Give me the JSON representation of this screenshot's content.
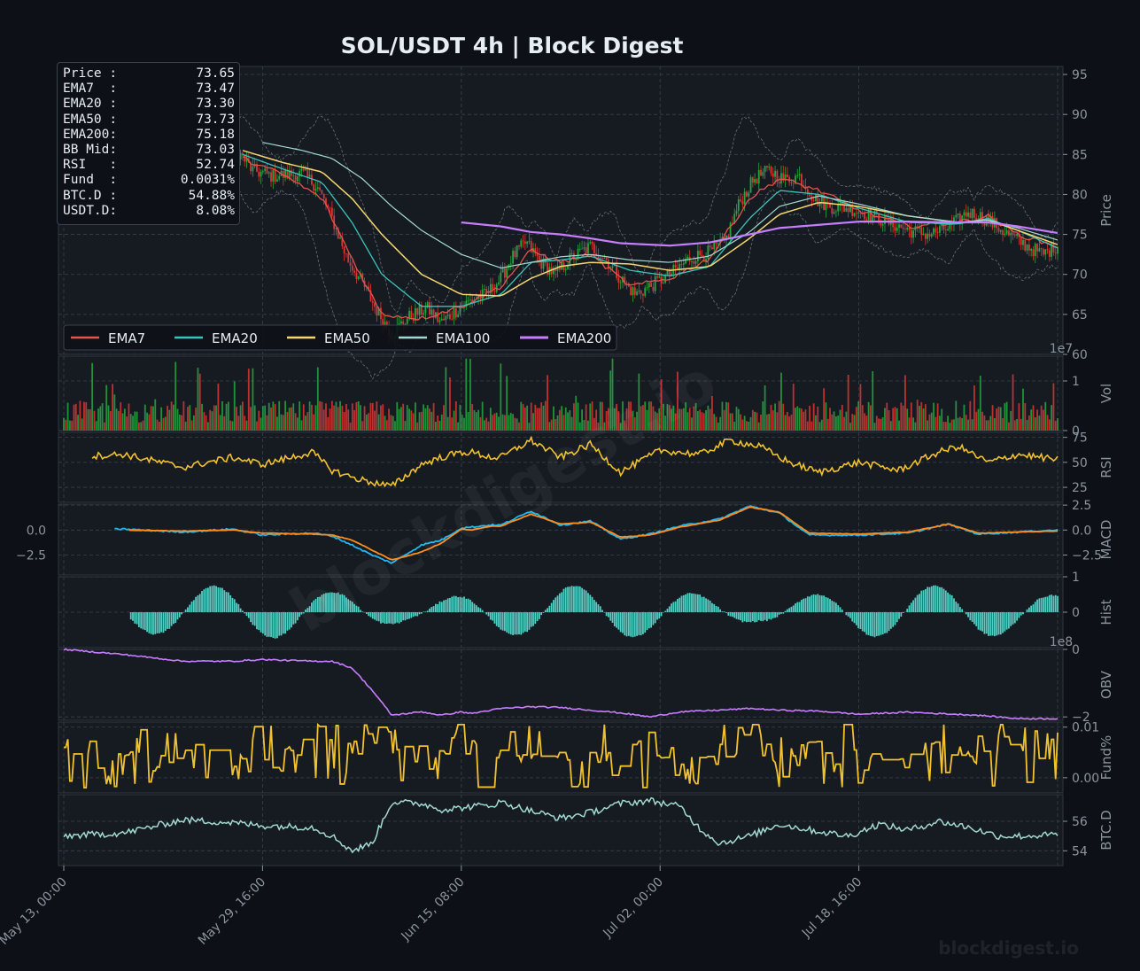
{
  "title": "SOL/USDT  4h  |  Block Digest",
  "watermark_center": "blockdigest.io",
  "watermark_corner": "blockdigest.io",
  "colors": {
    "background": "#0d1117",
    "panel": "#161b22",
    "grid": "#30363d",
    "axis_text": "#8b949e",
    "up": "#26a641",
    "down": "#da3633",
    "ema7": "#e5534b",
    "ema20": "#39c5bb",
    "ema50": "#f5d76e",
    "ema100": "#a3d9d3",
    "ema200": "#c77dff",
    "rsi": "#f2c12e",
    "macd": "#1fb8f0",
    "signal": "#ff8c1a",
    "hist": "#4fd1c5",
    "obv": "#c77dff",
    "funding": "#f2c12e",
    "btcd": "#a3d9d3"
  },
  "info_box": [
    {
      "label": "Price :",
      "value": "73.65"
    },
    {
      "label": "EMA7  :",
      "value": "73.47"
    },
    {
      "label": "EMA20 :",
      "value": "73.30"
    },
    {
      "label": "EMA50 :",
      "value": "73.73"
    },
    {
      "label": "EMA200:",
      "value": "75.18"
    },
    {
      "label": "BB Mid:",
      "value": "73.03"
    },
    {
      "label": "RSI   :",
      "value": "52.74"
    },
    {
      "label": "Fund  :",
      "value": "0.0031%"
    },
    {
      "label": "BTC.D :",
      "value": "54.88%"
    },
    {
      "label": "USDT.D:",
      "value": "8.08%"
    }
  ],
  "chart_data": {
    "type": "candlestick",
    "title": "SOL/USDT  4h  |  Block Digest",
    "x_ticks": [
      "May 13, 00:00",
      "May 29, 16:00",
      "Jun 15, 08:00",
      "Jul 02, 00:00",
      "Jul 18, 16:00"
    ],
    "x_anchor_points": [
      {
        "t": 0,
        "price": 86.5,
        "ema7": 86.0,
        "ema20": 86.5,
        "ema50": 86.0,
        "ema100": 86.5,
        "rsi": 55,
        "macd": 0.0,
        "signal": 0.0,
        "obv": 0.0,
        "funding": 0.005,
        "btcd": 55.0
      },
      {
        "t": 0.06,
        "price": 87.0,
        "ema7": 87.2,
        "ema20": 86.8,
        "ema50": 86.3,
        "ema100": 86.6,
        "rsi": 58,
        "macd": 0.1,
        "signal": 0.0,
        "obv": -0.15,
        "funding": 0.004,
        "btcd": 55.2
      },
      {
        "t": 0.12,
        "price": 87.5,
        "ema7": 87.3,
        "ema20": 87.0,
        "ema50": 86.6,
        "ema100": 86.7,
        "rsi": 45,
        "macd": -0.2,
        "signal": -0.1,
        "obv": -0.35,
        "funding": 0.006,
        "btcd": 56.1
      },
      {
        "t": 0.17,
        "price": 86.0,
        "ema7": 86.5,
        "ema20": 86.8,
        "ema50": 86.5,
        "ema100": 86.6,
        "rsi": 55,
        "macd": 0.1,
        "signal": 0.0,
        "obv": -0.35,
        "funding": 0.004,
        "btcd": 55.9
      },
      {
        "t": 0.2,
        "price": 82.0,
        "ema7": 83.5,
        "ema20": 84.5,
        "ema50": 85.0,
        "ema100": 86.0,
        "rsi": 48,
        "macd": -0.5,
        "signal": -0.3,
        "obv": -0.3,
        "funding": 0.007,
        "btcd": 55.7
      },
      {
        "t": 0.25,
        "price": 82.0,
        "ema7": 82.5,
        "ema20": 83.0,
        "ema50": 84.0,
        "ema100": 85.5,
        "rsi": 60,
        "macd": -0.3,
        "signal": -0.4,
        "obv": -0.35,
        "funding": 0.006,
        "btcd": 55.6
      },
      {
        "t": 0.27,
        "price": 78.0,
        "ema7": 79.0,
        "ema20": 80.5,
        "ema50": 82.5,
        "ema100": 84.5,
        "rsi": 42,
        "macd": -0.6,
        "signal": -0.5,
        "obv": -0.35,
        "funding": 0.008,
        "btcd": 55.0
      },
      {
        "t": 0.29,
        "price": 70.0,
        "ema7": 72.5,
        "ema20": 76.0,
        "ema50": 80.0,
        "ema100": 83.0,
        "rsi": 35,
        "macd": -1.5,
        "signal": -1.0,
        "obv": -0.55,
        "funding": 0.004,
        "btcd": 54.0
      },
      {
        "t": 0.31,
        "price": 65.0,
        "ema7": 66.5,
        "ema20": 70.5,
        "ema50": 76.5,
        "ema100": 80.5,
        "rsi": 30,
        "macd": -2.5,
        "signal": -2.0,
        "obv": -1.2,
        "funding": 0.002,
        "btcd": 54.5
      },
      {
        "t": 0.33,
        "price": 61.5,
        "ema7": 63.0,
        "ema20": 66.5,
        "ema50": 73.0,
        "ema100": 78.0,
        "rsi": 26,
        "macd": -3.3,
        "signal": -3.0,
        "obv": -1.95,
        "funding": 0.0,
        "btcd": 57.3
      },
      {
        "t": 0.36,
        "price": 65.0,
        "ema7": 64.5,
        "ema20": 65.0,
        "ema50": 69.5,
        "ema100": 75.5,
        "rsi": 48,
        "macd": -1.5,
        "signal": -2.2,
        "obv": -1.85,
        "funding": 0.002,
        "btcd": 57.2
      },
      {
        "t": 0.38,
        "price": 64.0,
        "ema7": 64.5,
        "ema20": 64.8,
        "ema50": 68.0,
        "ema100": 74.0,
        "rsi": 55,
        "macd": -1.0,
        "signal": -1.3,
        "obv": -1.95,
        "funding": 0.003,
        "btcd": 56.8
      },
      {
        "t": 0.41,
        "price": 66.5,
        "ema7": 66.0,
        "ema20": 65.5,
        "ema50": 67.3,
        "ema100": 72.0,
        "rsi": 60,
        "macd": 0.3,
        "signal": 0.0,
        "obv": -1.9,
        "funding": 0.004,
        "btcd": 57.0
      },
      {
        "t": 0.43,
        "price": 68.0,
        "ema7": 67.5,
        "ema20": 67.0,
        "ema50": 67.5,
        "ema100": 71.0,
        "rsi": 55,
        "macd": 0.5,
        "signal": 0.4,
        "obv": -1.8,
        "funding": 0.005,
        "btcd": 57.1
      },
      {
        "t": 0.4,
        "price": 67.0,
        "ema7": 66.5,
        "ema20": 66.0,
        "ema50": 67.2,
        "ema100": 71.5,
        "rsi": 60,
        "macd": 0.2,
        "signal": 0.1,
        "obv": -1.85,
        "funding": 0.004,
        "btcd": 56.9
      }
    ],
    "panels": [
      {
        "name": "Price",
        "ylabel": "Price",
        "ylim": [
          60,
          96
        ],
        "yticks": [
          60,
          65,
          70,
          75,
          80,
          85,
          90,
          95
        ]
      },
      {
        "name": "Vol",
        "ylabel": "Vol",
        "ylim": [
          0,
          1.5
        ],
        "yticks": [
          0,
          1
        ],
        "exponent": "1e7"
      },
      {
        "name": "RSI",
        "ylabel": "RSI",
        "ylim": [
          10,
          80
        ],
        "yticks": [
          25,
          50,
          75
        ]
      },
      {
        "name": "MACD",
        "ylabel": "MACD",
        "ylim": [
          -4.5,
          2.6
        ],
        "yticks_right": [
          "2.5",
          "0.0",
          "−2.5"
        ],
        "yticks_left": [
          "0.0",
          "−2.5"
        ]
      },
      {
        "name": "Hist",
        "ylabel": "Hist",
        "ylim": [
          -1.0,
          1.0
        ],
        "yticks": [
          0,
          1
        ]
      },
      {
        "name": "OBV",
        "ylabel": "OBV",
        "ylim": [
          -2.1,
          0.0
        ],
        "yticks": [
          "0",
          "−2"
        ],
        "exponent": "1e8"
      },
      {
        "name": "Fund%",
        "ylabel": "Fund%",
        "ylim": [
          -0.003,
          0.011
        ],
        "yticks": [
          "0.00",
          "0.01"
        ]
      },
      {
        "name": "BTC.D",
        "ylabel": "BTC.D",
        "ylim": [
          53.0,
          57.8
        ],
        "yticks": [
          54,
          56
        ]
      }
    ],
    "legend": [
      "EMA7",
      "EMA20",
      "EMA50",
      "EMA100",
      "EMA200"
    ],
    "legend_placement": "lower-left",
    "price_path": [
      [
        0.0,
        86.5
      ],
      [
        0.03,
        86.0
      ],
      [
        0.06,
        87.2
      ],
      [
        0.09,
        86.5
      ],
      [
        0.11,
        86.8
      ],
      [
        0.13,
        87.3
      ],
      [
        0.15,
        86.0
      ],
      [
        0.17,
        86.2
      ],
      [
        0.19,
        83.0
      ],
      [
        0.21,
        82.3
      ],
      [
        0.24,
        82.6
      ],
      [
        0.255,
        81.0
      ],
      [
        0.27,
        77.0
      ],
      [
        0.285,
        72.0
      ],
      [
        0.3,
        69.0
      ],
      [
        0.315,
        65.5
      ],
      [
        0.33,
        62.5
      ],
      [
        0.345,
        64.5
      ],
      [
        0.365,
        65.8
      ],
      [
        0.38,
        64.0
      ],
      [
        0.395,
        65.5
      ],
      [
        0.41,
        66.8
      ],
      [
        0.425,
        67.5
      ],
      [
        0.44,
        69.5
      ],
      [
        0.45,
        72.0
      ],
      [
        0.465,
        74.0
      ],
      [
        0.48,
        71.5
      ],
      [
        0.495,
        70.0
      ],
      [
        0.51,
        72.0
      ],
      [
        0.53,
        73.5
      ],
      [
        0.545,
        72.0
      ],
      [
        0.56,
        69.5
      ],
      [
        0.575,
        67.5
      ],
      [
        0.59,
        68.5
      ],
      [
        0.61,
        70.0
      ],
      [
        0.63,
        72.0
      ],
      [
        0.65,
        72.8
      ],
      [
        0.665,
        74.0
      ],
      [
        0.68,
        79.0
      ],
      [
        0.695,
        82.0
      ],
      [
        0.71,
        83.0
      ],
      [
        0.725,
        81.8
      ],
      [
        0.74,
        82.3
      ],
      [
        0.755,
        79.5
      ],
      [
        0.77,
        78.5
      ],
      [
        0.79,
        78.3
      ],
      [
        0.81,
        77.5
      ],
      [
        0.83,
        76.5
      ],
      [
        0.85,
        75.5
      ],
      [
        0.87,
        75.0
      ],
      [
        0.89,
        75.8
      ],
      [
        0.91,
        77.8
      ],
      [
        0.93,
        76.8
      ],
      [
        0.95,
        75.0
      ],
      [
        0.97,
        73.5
      ],
      [
        0.985,
        72.5
      ],
      [
        1.0,
        73.65
      ]
    ],
    "ema_paths": {
      "EMA7": [
        [
          0.18,
          84.5
        ],
        [
          0.22,
          82.5
        ],
        [
          0.26,
          79.5
        ],
        [
          0.29,
          72.0
        ],
        [
          0.32,
          65.0
        ],
        [
          0.36,
          64.5
        ],
        [
          0.4,
          66.0
        ],
        [
          0.44,
          68.5
        ],
        [
          0.47,
          73.0
        ],
        [
          0.5,
          71.5
        ],
        [
          0.53,
          72.5
        ],
        [
          0.57,
          68.5
        ],
        [
          0.61,
          69.5
        ],
        [
          0.65,
          72.0
        ],
        [
          0.69,
          79.5
        ],
        [
          0.72,
          82.0
        ],
        [
          0.76,
          80.5
        ],
        [
          0.8,
          78.0
        ],
        [
          0.85,
          76.0
        ],
        [
          0.9,
          76.5
        ],
        [
          0.93,
          77.3
        ],
        [
          0.96,
          75.0
        ],
        [
          1.0,
          73.47
        ]
      ],
      "EMA20": [
        [
          0.18,
          85.0
        ],
        [
          0.22,
          83.2
        ],
        [
          0.26,
          81.5
        ],
        [
          0.29,
          76.5
        ],
        [
          0.32,
          70.0
        ],
        [
          0.36,
          66.0
        ],
        [
          0.4,
          66.0
        ],
        [
          0.44,
          67.5
        ],
        [
          0.47,
          71.5
        ],
        [
          0.5,
          71.8
        ],
        [
          0.53,
          72.3
        ],
        [
          0.57,
          70.5
        ],
        [
          0.61,
          69.8
        ],
        [
          0.65,
          71.0
        ],
        [
          0.69,
          77.0
        ],
        [
          0.72,
          80.5
        ],
        [
          0.76,
          80.0
        ],
        [
          0.8,
          78.3
        ],
        [
          0.85,
          76.5
        ],
        [
          0.9,
          76.3
        ],
        [
          0.93,
          77.0
        ],
        [
          0.96,
          75.5
        ],
        [
          1.0,
          73.3
        ]
      ],
      "EMA50": [
        [
          0.18,
          85.5
        ],
        [
          0.22,
          84.0
        ],
        [
          0.26,
          82.8
        ],
        [
          0.29,
          79.5
        ],
        [
          0.32,
          75.0
        ],
        [
          0.36,
          70.0
        ],
        [
          0.4,
          67.5
        ],
        [
          0.44,
          67.3
        ],
        [
          0.47,
          69.5
        ],
        [
          0.5,
          71.0
        ],
        [
          0.53,
          71.5
        ],
        [
          0.57,
          71.3
        ],
        [
          0.61,
          70.5
        ],
        [
          0.65,
          71.0
        ],
        [
          0.69,
          74.5
        ],
        [
          0.72,
          77.5
        ],
        [
          0.76,
          79.0
        ],
        [
          0.8,
          78.5
        ],
        [
          0.85,
          77.3
        ],
        [
          0.9,
          76.5
        ],
        [
          0.93,
          76.8
        ],
        [
          0.96,
          75.5
        ],
        [
          1.0,
          73.73
        ]
      ],
      "EMA100": [
        [
          0.2,
          86.5
        ],
        [
          0.24,
          85.5
        ],
        [
          0.27,
          84.5
        ],
        [
          0.3,
          82.0
        ],
        [
          0.33,
          78.5
        ],
        [
          0.36,
          75.5
        ],
        [
          0.4,
          72.5
        ],
        [
          0.44,
          70.8
        ],
        [
          0.47,
          71.5
        ],
        [
          0.5,
          72.2
        ],
        [
          0.53,
          72.5
        ],
        [
          0.57,
          71.8
        ],
        [
          0.61,
          71.5
        ],
        [
          0.65,
          72.3
        ],
        [
          0.69,
          75.3
        ],
        [
          0.72,
          78.5
        ],
        [
          0.76,
          79.8
        ],
        [
          0.8,
          78.8
        ],
        [
          0.85,
          77.3
        ],
        [
          0.9,
          76.5
        ],
        [
          0.93,
          76.8
        ],
        [
          0.96,
          75.8
        ],
        [
          1.0,
          74.3
        ]
      ],
      "EMA200": [
        [
          0.4,
          76.5
        ],
        [
          0.44,
          76.0
        ],
        [
          0.47,
          75.3
        ],
        [
          0.5,
          75.0
        ],
        [
          0.53,
          74.5
        ],
        [
          0.56,
          73.9
        ],
        [
          0.61,
          73.6
        ],
        [
          0.65,
          74.0
        ],
        [
          0.69,
          75.0
        ],
        [
          0.72,
          75.8
        ],
        [
          0.76,
          76.2
        ],
        [
          0.8,
          76.6
        ],
        [
          0.85,
          76.6
        ],
        [
          0.9,
          76.5
        ],
        [
          0.93,
          76.5
        ],
        [
          0.96,
          76.0
        ],
        [
          1.0,
          75.18
        ]
      ]
    },
    "bollinger": {
      "upper_offset": 2.5,
      "lower_offset": 2.5
    }
  }
}
